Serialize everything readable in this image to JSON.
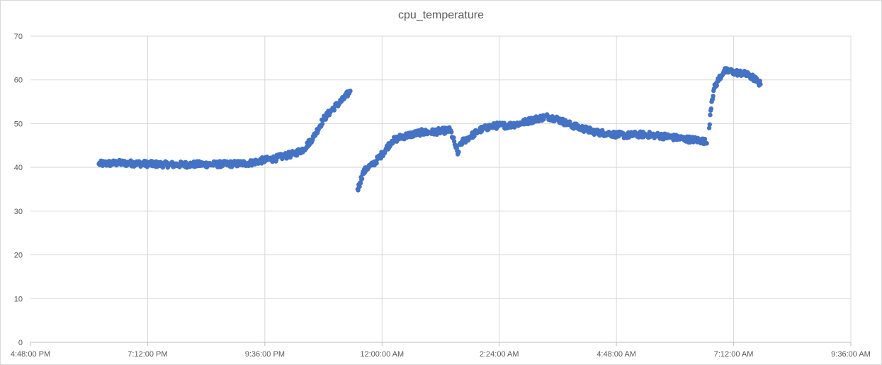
{
  "chart_data": {
    "type": "scatter",
    "title": "cpu_temperature",
    "xlabel": "",
    "ylabel": "",
    "ylim": [
      0,
      70
    ],
    "yticks": [
      0,
      10,
      20,
      30,
      40,
      50,
      60,
      70
    ],
    "xlim_hours": [
      16.8,
      33.6
    ],
    "xticks": [
      {
        "t": 16.8,
        "label": "4:48:00 PM"
      },
      {
        "t": 19.2,
        "label": "7:12:00 PM"
      },
      {
        "t": 21.6,
        "label": "9:36:00 PM"
      },
      {
        "t": 24.0,
        "label": "12:00:00 AM"
      },
      {
        "t": 26.4,
        "label": "2:24:00 AM"
      },
      {
        "t": 28.8,
        "label": "4:48:00 AM"
      },
      {
        "t": 31.2,
        "label": "7:12:00 AM"
      },
      {
        "t": 33.6,
        "label": "9:36:00 AM"
      }
    ],
    "grid": true,
    "legend": "none",
    "series_color": "#4472c4",
    "segments": [
      {
        "points": [
          [
            18.2,
            40.8
          ],
          [
            18.6,
            41.0
          ],
          [
            19.0,
            40.9
          ],
          [
            19.4,
            40.7
          ],
          [
            19.8,
            40.6
          ],
          [
            20.2,
            40.7
          ],
          [
            20.6,
            40.7
          ],
          [
            21.0,
            40.8
          ],
          [
            21.3,
            41.0
          ],
          [
            21.5,
            41.5
          ],
          [
            21.8,
            42.0
          ],
          [
            22.0,
            42.6
          ],
          [
            22.2,
            43.1
          ],
          [
            22.4,
            44.2
          ],
          [
            22.6,
            47.0
          ],
          [
            22.8,
            51.0
          ],
          [
            23.0,
            53.5
          ],
          [
            23.2,
            55.5
          ],
          [
            23.35,
            57.5
          ]
        ]
      },
      {
        "points": [
          [
            23.5,
            35.0
          ],
          [
            23.55,
            36.5
          ],
          [
            23.6,
            38.5
          ],
          [
            23.7,
            40.0
          ],
          [
            23.8,
            40.5
          ],
          [
            24.0,
            43.0
          ],
          [
            24.2,
            46.0
          ],
          [
            24.4,
            47.0
          ],
          [
            24.6,
            47.5
          ],
          [
            24.8,
            48.0
          ],
          [
            25.0,
            48.0
          ],
          [
            25.2,
            48.3
          ],
          [
            25.4,
            48.5
          ],
          [
            25.5,
            45.0
          ],
          [
            25.55,
            43.0
          ],
          [
            25.6,
            45.5
          ],
          [
            25.8,
            47.0
          ],
          [
            26.0,
            48.5
          ],
          [
            26.2,
            49.3
          ],
          [
            26.4,
            49.6
          ],
          [
            26.6,
            49.6
          ],
          [
            26.8,
            50.0
          ],
          [
            27.0,
            50.6
          ],
          [
            27.2,
            51.2
          ],
          [
            27.4,
            51.6
          ],
          [
            27.6,
            51.0
          ],
          [
            27.8,
            50.0
          ],
          [
            28.0,
            49.2
          ],
          [
            28.2,
            48.6
          ],
          [
            28.4,
            48.0
          ],
          [
            28.6,
            47.8
          ],
          [
            28.8,
            47.5
          ],
          [
            29.0,
            47.3
          ],
          [
            29.2,
            47.5
          ],
          [
            29.4,
            47.5
          ],
          [
            29.6,
            47.3
          ],
          [
            29.8,
            47.1
          ],
          [
            30.0,
            46.8
          ],
          [
            30.2,
            46.5
          ],
          [
            30.4,
            46.3
          ],
          [
            30.6,
            46.0
          ],
          [
            30.65,
            45.5
          ]
        ]
      },
      {
        "points": [
          [
            30.7,
            49.0
          ],
          [
            30.72,
            52.0
          ],
          [
            30.75,
            55.0
          ],
          [
            30.8,
            58.0
          ],
          [
            30.9,
            60.3
          ],
          [
            31.0,
            62.0
          ],
          [
            31.1,
            62.0
          ],
          [
            31.2,
            61.8
          ],
          [
            31.3,
            61.6
          ],
          [
            31.4,
            61.5
          ],
          [
            31.5,
            61.0
          ],
          [
            31.6,
            60.5
          ],
          [
            31.7,
            59.5
          ],
          [
            31.75,
            59.0
          ]
        ]
      }
    ]
  }
}
